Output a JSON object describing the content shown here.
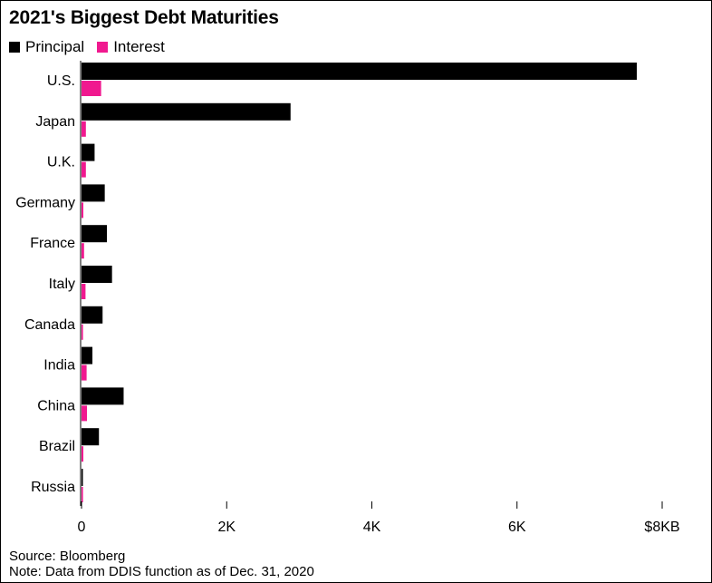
{
  "title": "2021's Biggest Debt Maturities",
  "source": "Source: Bloomberg",
  "note": "Note: Data from DDIS function as of Dec. 31, 2020",
  "colors": {
    "principal": "#000000",
    "interest": "#f0198f"
  },
  "chart_data": {
    "type": "bar",
    "orientation": "horizontal",
    "title": "2021's Biggest Debt Maturities",
    "categories": [
      "U.S.",
      "Japan",
      "U.K.",
      "Germany",
      "France",
      "Italy",
      "Canada",
      "India",
      "China",
      "Brazil",
      "Russia"
    ],
    "series": [
      {
        "name": "Principal",
        "color": "#000000",
        "values": [
          7650,
          2880,
          180,
          320,
          350,
          420,
          290,
          150,
          580,
          240,
          15
        ]
      },
      {
        "name": "Interest",
        "color": "#f0198f",
        "values": [
          270,
          60,
          60,
          25,
          35,
          55,
          20,
          70,
          75,
          25,
          20
        ]
      }
    ],
    "xlim": [
      0,
      8000
    ],
    "x_ticks": [
      0,
      2000,
      4000,
      6000,
      8000
    ],
    "x_tick_labels": [
      "0",
      "2K",
      "4K",
      "6K",
      "$8KB"
    ],
    "xlabel": "",
    "ylabel": "",
    "legend": "top-left",
    "grid": false
  }
}
